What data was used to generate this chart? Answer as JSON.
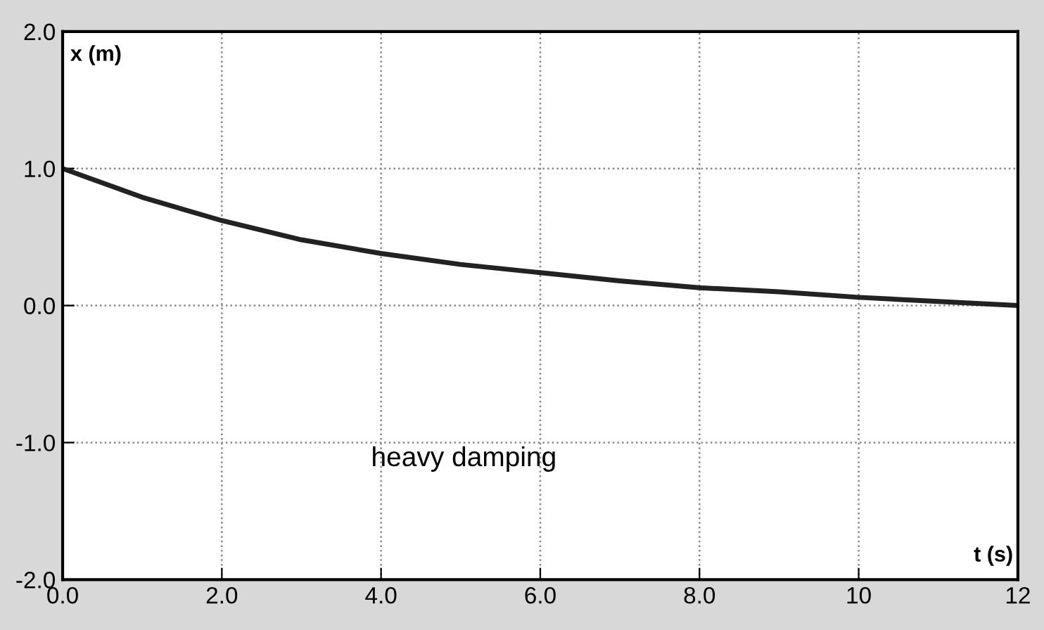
{
  "chart_data": {
    "type": "line",
    "xlabel": "t (s)",
    "ylabel": "x (m)",
    "annotations": [
      "heavy damping"
    ],
    "x": [
      0,
      1,
      2,
      3,
      4,
      5,
      6,
      7,
      8,
      9,
      10,
      11,
      12
    ],
    "series": [
      {
        "color": "#222222",
        "values": [
          1.0,
          0.79,
          0.62,
          0.48,
          0.38,
          0.3,
          0.24,
          0.18,
          0.13,
          0.1,
          0.06,
          0.03,
          0.0
        ]
      }
    ],
    "xlim": [
      0,
      12
    ],
    "ylim": [
      -2,
      2
    ],
    "xticks": [
      {
        "value": 0,
        "label": "0.0"
      },
      {
        "value": 2,
        "label": "2.0"
      },
      {
        "value": 4,
        "label": "4.0"
      },
      {
        "value": 6,
        "label": "6.0"
      },
      {
        "value": 8,
        "label": "8.0"
      },
      10,
      12
    ],
    "yticks": [
      {
        "value": -2,
        "label": "-2.0"
      },
      {
        "value": -1,
        "label": "-1.0"
      },
      {
        "value": 0,
        "label": "0.0"
      },
      {
        "value": 1,
        "label": "1.0"
      },
      {
        "value": 2,
        "label": "2.0"
      }
    ],
    "grid": true,
    "line_style": "solid",
    "marker": "none"
  }
}
